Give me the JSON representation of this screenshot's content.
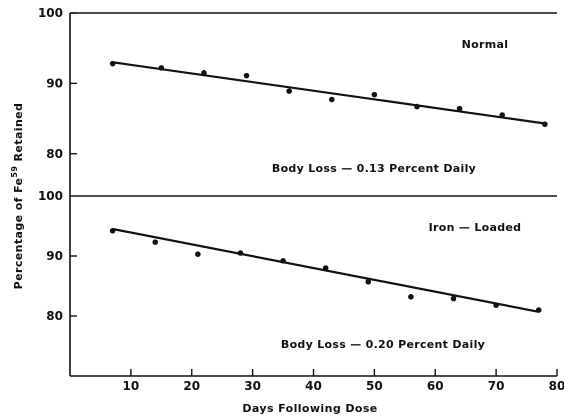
{
  "chart_data": {
    "y_axis_label": "Percentage of Fe59 Retained",
    "x_axis": {
      "label": "Days Following Dose",
      "range": [
        0,
        80
      ],
      "ticks": [
        10,
        20,
        30,
        40,
        50,
        60,
        70,
        80
      ],
      "tick_labels": [
        "10",
        "20",
        "30",
        "40",
        "50",
        "60",
        "70",
        "80"
      ]
    },
    "panels": [
      {
        "type": "scatter",
        "name": "Normal",
        "annotation": "Body Loss — 0.13 Percent Daily",
        "ylim": [
          74,
          100
        ],
        "yticks": [
          80,
          90,
          100
        ],
        "ytick_labels": [
          "80",
          "90",
          "100"
        ],
        "points": [
          {
            "x": 7,
            "y": 92.8
          },
          {
            "x": 15,
            "y": 92.2
          },
          {
            "x": 22,
            "y": 91.5
          },
          {
            "x": 29,
            "y": 91.1
          },
          {
            "x": 36,
            "y": 88.9
          },
          {
            "x": 43,
            "y": 87.7
          },
          {
            "x": 50,
            "y": 88.4
          },
          {
            "x": 57,
            "y": 86.7
          },
          {
            "x": 64,
            "y": 86.4
          },
          {
            "x": 71,
            "y": 85.5
          },
          {
            "x": 78,
            "y": 84.2
          }
        ],
        "fit_line": {
          "x": [
            7,
            78
          ],
          "y": [
            93.0,
            84.3
          ]
        }
      },
      {
        "type": "scatter",
        "name": "Iron — Loaded",
        "annotation": "Body Loss — 0.20 Percent Daily",
        "ylim": [
          70,
          100
        ],
        "yticks": [
          80,
          90
        ],
        "ytick_labels": [
          "80",
          "90"
        ],
        "points": [
          {
            "x": 7,
            "y": 94.2
          },
          {
            "x": 14,
            "y": 92.3
          },
          {
            "x": 21,
            "y": 90.3
          },
          {
            "x": 28,
            "y": 90.5
          },
          {
            "x": 35,
            "y": 89.2
          },
          {
            "x": 42,
            "y": 88.0
          },
          {
            "x": 49,
            "y": 85.7
          },
          {
            "x": 56,
            "y": 83.2
          },
          {
            "x": 63,
            "y": 82.9
          },
          {
            "x": 70,
            "y": 81.8
          },
          {
            "x": 77,
            "y": 81.0
          }
        ],
        "fit_line": {
          "x": [
            7,
            77
          ],
          "y": [
            94.5,
            80.7
          ]
        }
      }
    ]
  }
}
